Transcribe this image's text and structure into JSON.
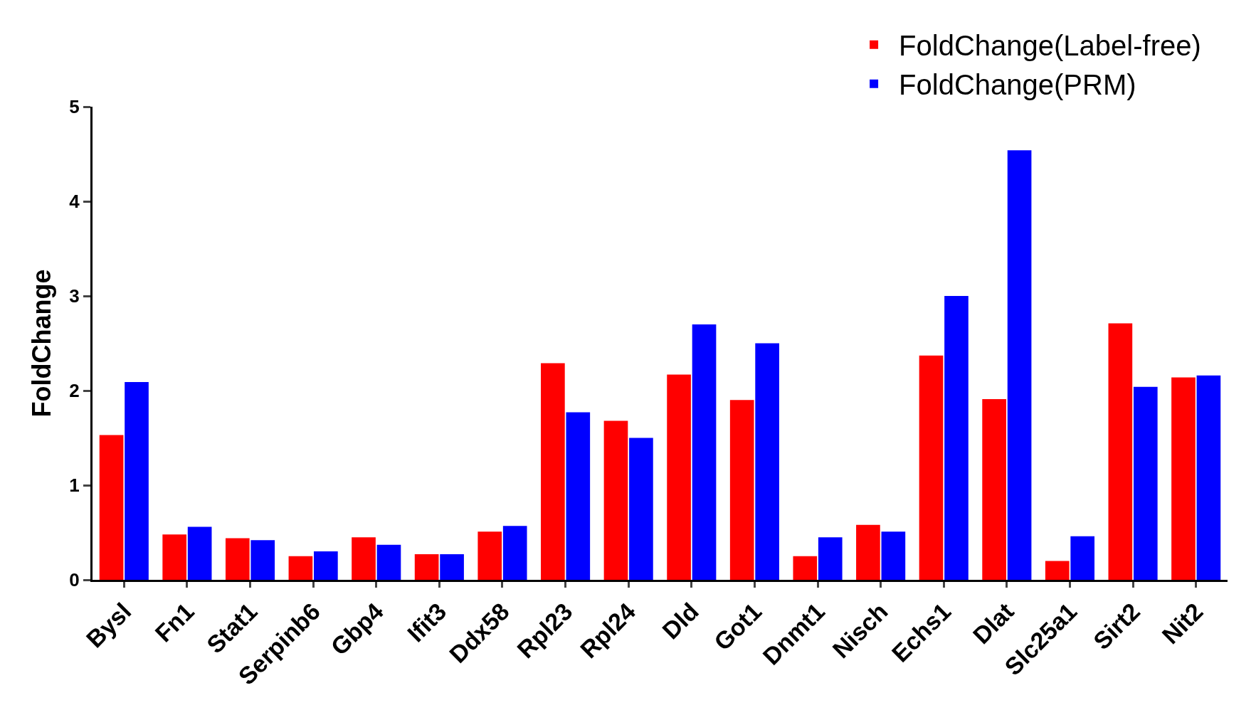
{
  "chart_data": {
    "type": "bar",
    "ylabel": "FoldChange",
    "categories": [
      "Bysl",
      "Fn1",
      "Stat1",
      "Serpinb6",
      "Gbp4",
      "Ifit3",
      "Ddx58",
      "Rpl23",
      "Rpl24",
      "Dld",
      "Got1",
      "Dnmt1",
      "Nisch",
      "Echs1",
      "Dlat",
      "Slc25a1",
      "Sirt2",
      "Nit2"
    ],
    "series": [
      {
        "name": "FoldChange(Label-free)",
        "color": "#ff0000",
        "values": [
          1.53,
          0.48,
          0.44,
          0.25,
          0.45,
          0.27,
          0.51,
          2.29,
          1.68,
          2.17,
          1.9,
          0.25,
          0.58,
          2.37,
          1.91,
          0.2,
          2.71,
          2.14
        ]
      },
      {
        "name": "FoldChange(PRM)",
        "color": "#0000ff",
        "values": [
          2.09,
          0.56,
          0.42,
          0.3,
          0.37,
          0.27,
          0.57,
          1.77,
          1.5,
          2.7,
          2.5,
          0.45,
          0.51,
          3.0,
          4.54,
          0.46,
          2.04,
          2.16
        ]
      }
    ],
    "ylim": [
      0,
      5
    ],
    "yticks": [
      0,
      1,
      2,
      3,
      4,
      5
    ],
    "legend": "top right"
  }
}
